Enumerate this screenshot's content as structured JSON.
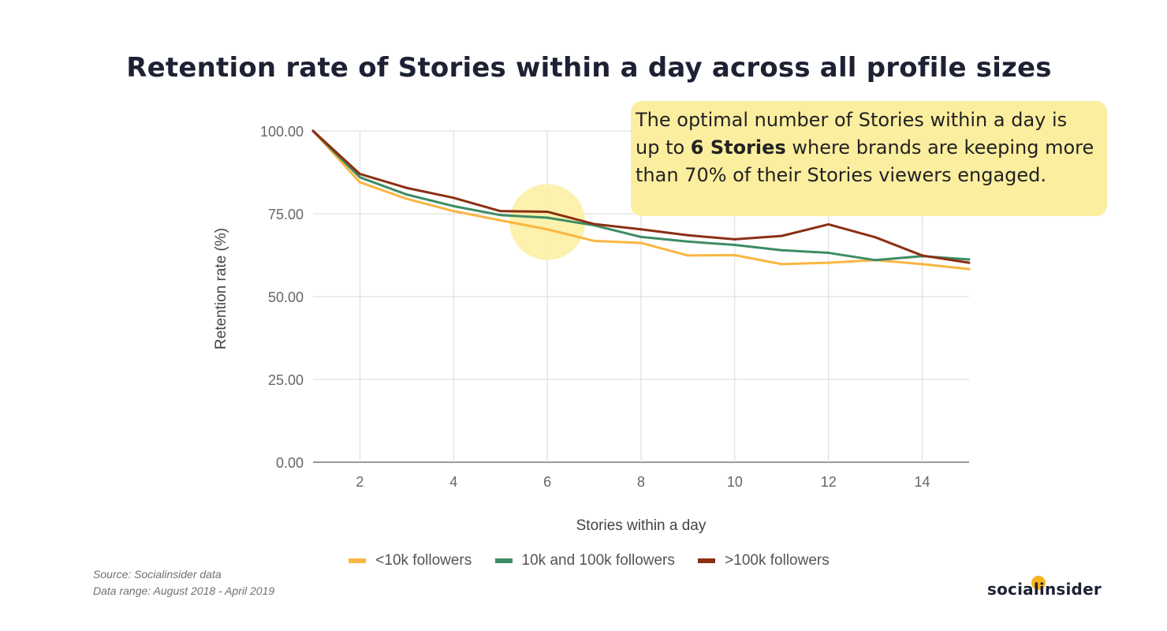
{
  "title": "Retention rate of Stories within a day across all profile sizes",
  "annotation": {
    "before_bold": "The optimal number of Stories within a day is up to ",
    "bold": "6 Stories",
    "after_bold": " where brands are keeping more than 70% of their Stories viewers engaged."
  },
  "chart_data": {
    "type": "line",
    "xlabel": "Stories within a day",
    "ylabel": "Retention rate (%)",
    "xlim": [
      1,
      15
    ],
    "ylim": [
      0,
      100
    ],
    "grid": true,
    "legend_position": "bottom",
    "x_ticks": [
      2,
      4,
      6,
      8,
      10,
      12,
      14
    ],
    "x_tick_labels": [
      "2",
      "4",
      "6",
      "8",
      "10",
      "12",
      "14"
    ],
    "y_ticks": [
      0,
      25,
      50,
      75,
      100
    ],
    "y_tick_labels": [
      "0.00",
      "25.00",
      "50.00",
      "75.00",
      "100.00"
    ],
    "x": [
      1,
      2,
      3,
      4,
      5,
      6,
      7,
      8,
      9,
      10,
      11,
      12,
      13,
      14,
      15
    ],
    "series": [
      {
        "name": "<10k followers",
        "color": "#f9b642",
        "values": [
          100,
          84.5,
          79.5,
          75.8,
          73,
          70.3,
          66.8,
          66.2,
          62.4,
          62.5,
          59.8,
          60.2,
          61,
          59.8,
          58.3
        ]
      },
      {
        "name": "10k and 100k followers",
        "color": "#3d8c64",
        "values": [
          100,
          86,
          80.8,
          77.3,
          74.6,
          73.8,
          71.5,
          68,
          66.6,
          65.6,
          64,
          63.2,
          61,
          62.2,
          61.2
        ]
      },
      {
        "name": ">100k followers",
        "color": "#8b2f13",
        "values": [
          100,
          87,
          82.8,
          79.8,
          75.8,
          75.6,
          71.9,
          70.3,
          68.5,
          67.3,
          68.3,
          71.8,
          67.9,
          62.4,
          60.2
        ]
      }
    ],
    "highlight": {
      "x": 6,
      "y": 72.5,
      "color": "#fbee9f"
    }
  },
  "source": {
    "line1": "Source: Socialinsider data",
    "line2": "Data range: August 2018 - April 2019"
  },
  "logo": {
    "text": "socialinsider"
  }
}
